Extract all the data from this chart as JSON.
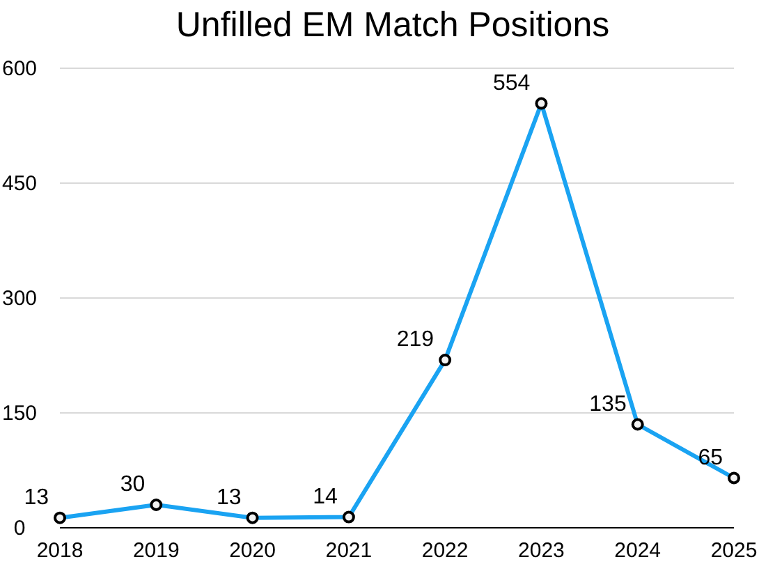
{
  "chart_data": {
    "type": "line",
    "title": "Unfilled EM Match Positions",
    "categories": [
      "2018",
      "2019",
      "2020",
      "2021",
      "2022",
      "2023",
      "2024",
      "2025"
    ],
    "values": [
      13,
      30,
      13,
      14,
      219,
      554,
      135,
      65
    ],
    "color": "#1aa3f2",
    "ylim": [
      0,
      600
    ],
    "yticks": [
      0,
      150,
      300,
      450,
      600
    ],
    "grid": "y",
    "marker": "circle",
    "line_style": "solid",
    "data_labels": true
  }
}
